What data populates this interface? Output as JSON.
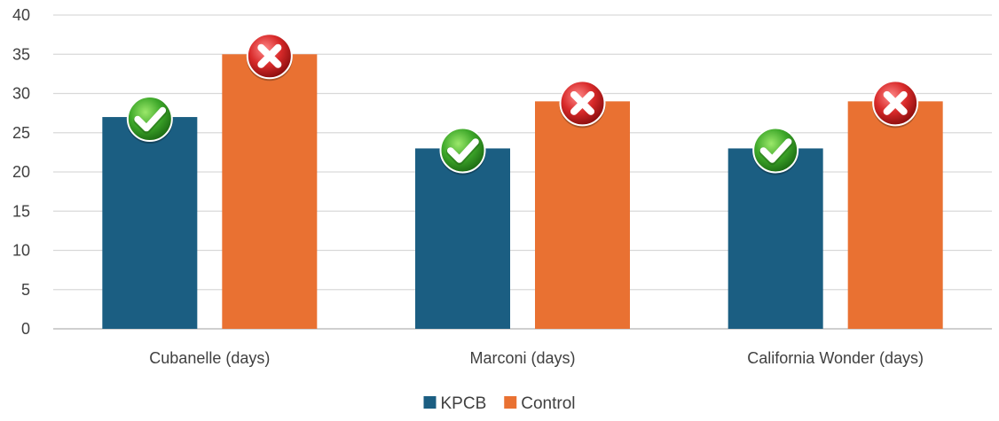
{
  "chart_data": {
    "type": "bar",
    "title": "",
    "xlabel": "",
    "ylabel": "",
    "categories": [
      "Cubanelle (days)",
      "Marconi (days)",
      "California Wonder (days)"
    ],
    "series": [
      {
        "name": "KPCB",
        "values": [
          27,
          23,
          23
        ],
        "color": "#1b5e82",
        "marker": "green-check-icon"
      },
      {
        "name": "Control",
        "values": [
          35,
          29,
          29
        ],
        "color": "#e97132",
        "marker": "red-x-icon"
      }
    ],
    "ylim": [
      0,
      40
    ],
    "yticks": [
      0,
      5,
      10,
      15,
      20,
      25,
      30,
      35,
      40
    ],
    "grid": true,
    "legend_position": "bottom"
  }
}
